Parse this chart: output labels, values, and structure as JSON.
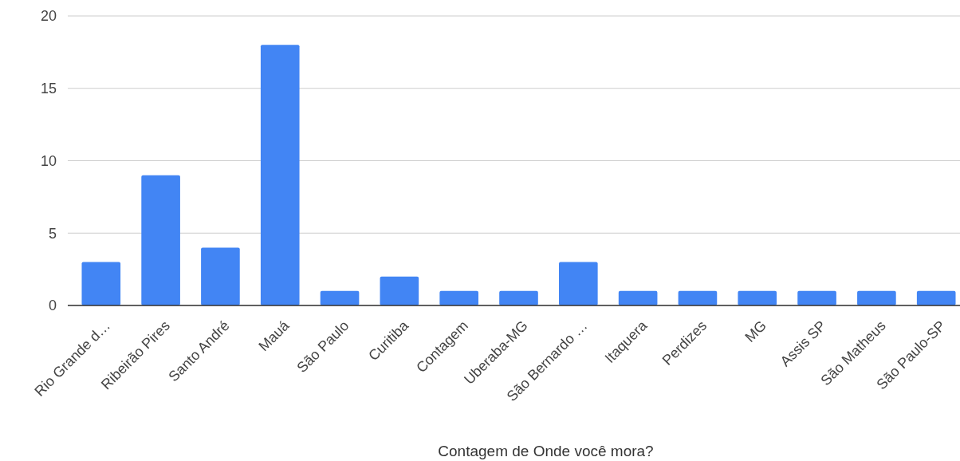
{
  "chart_data": {
    "type": "bar",
    "xlabel": "Contagem de Onde você mora?",
    "categories": [
      "Rio Grande d…",
      "Ribeirão Pires",
      "Santo André",
      "Mauá",
      "São Paulo",
      "Curitiba",
      "Contagem",
      "Uberaba-MG",
      "São Bernardo …",
      "Itaquera",
      "Perdizes",
      "MG",
      "Assis SP",
      "São Matheus",
      "São Paulo-SP"
    ],
    "values": [
      3,
      9,
      4,
      18,
      1,
      2,
      1,
      1,
      3,
      1,
      1,
      1,
      1,
      1,
      1
    ],
    "color": "#4285f4",
    "ylim": [
      0,
      20
    ],
    "yticks": [
      0,
      5,
      10,
      15,
      20
    ],
    "grid": "y"
  }
}
